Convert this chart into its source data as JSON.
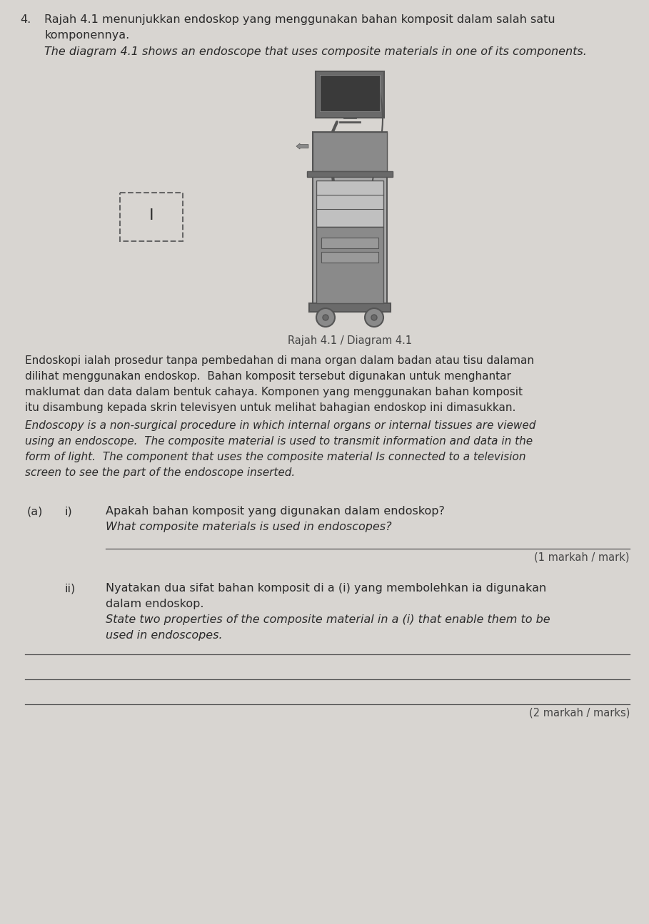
{
  "bg_color": "#d8d5d1",
  "text_color": "#2a2a2a",
  "question_number": "4.",
  "malay_title": "Rajah 4.1 menunjukkan endoskop yang menggunakan bahan komposit dalam salah satu",
  "malay_title2": "komponennya.",
  "english_title": "The diagram 4.1 shows an endoscope that uses composite materials in one of its components.",
  "diagram_label": "Rajah 4.1 / Diagram 4.1",
  "box_label": "I",
  "malay_para_lines": [
    "Endoskopi ialah prosedur tanpa pembedahan di mana organ dalam badan atau tisu dalaman",
    "dilihat menggunakan endoskop.  Bahan komposit tersebut digunakan untuk menghantar",
    "maklumat dan data dalam bentuk cahaya. Komponen yang menggunakan bahan komposit",
    "itu disambung kepada skrin televisyen untuk melihat bahagian endoskop ini dimasukkan."
  ],
  "english_para_lines": [
    "Endoscopy is a non-surgical procedure in which internal organs or internal tissues are viewed",
    "using an endoscope.  The composite material is used to transmit information and data in the",
    "form of light.  The component that uses the composite material Is connected to a television",
    "screen to see the part of the endoscope inserted."
  ],
  "qa_label": "(a)",
  "qi_label": "i)",
  "qi_malay": "Apakah bahan komposit yang digunakan dalam endoskop?",
  "qi_english": "What composite materials is used in endoscopes?",
  "qi_marks": "(1 markah / mark)",
  "qii_label": "ii)",
  "qii_malay1": "Nyatakan dua sifat bahan komposit di a (i) yang membolehkan ia digunakan",
  "qii_malay2": "dalam endoskop.",
  "qii_english1": "State two properties of the composite material in a (i) that enable them to be",
  "qii_english2": "used in endoscopes.",
  "qii_marks": "(2 markah / marks)",
  "line_color": "#555555",
  "label_color": "#555555"
}
